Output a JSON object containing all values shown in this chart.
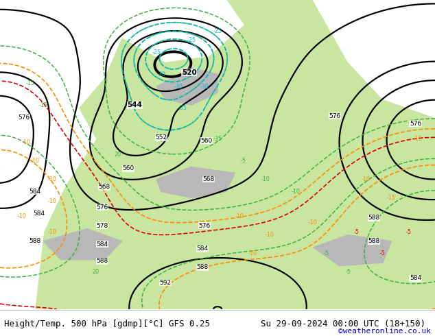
{
  "title_left": "Height/Temp. 500 hPa [gdmp][°C] GFS 0.25",
  "title_right": "Su 29-09-2024 00:00 UTC (18+150)",
  "watermark": "©weatheronline.co.uk",
  "watermark_color": "#0000cc",
  "bg_color": "#ffffff",
  "land_green": "#c8e6a0",
  "land_gray": "#b8b8b8",
  "ocean_white": "#ffffff",
  "title_fontsize": 9,
  "watermark_fontsize": 8,
  "figsize": [
    6.34,
    4.9
  ],
  "dpi": 100
}
